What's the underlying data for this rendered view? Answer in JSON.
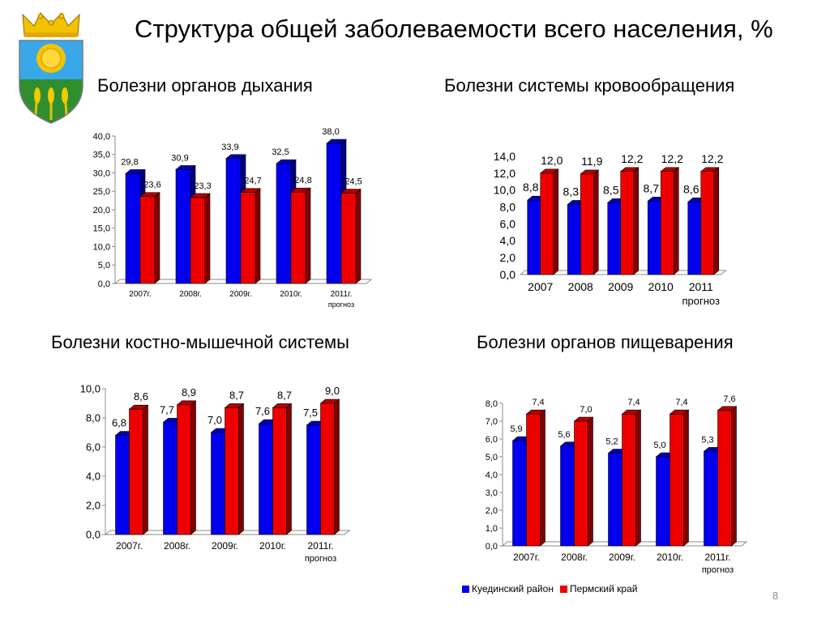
{
  "title": "Структура общей заболеваемости всего населения, %",
  "page_number": "8",
  "colors": {
    "region": "#0000ee",
    "krai": "#ee0000"
  },
  "legend": [
    {
      "label": "Куединский район",
      "color": "#0000ee"
    },
    {
      "label": "Пермский край",
      "color": "#ee0000"
    }
  ],
  "emblem": {
    "icon": "coat-of-arms-icon"
  },
  "chart_data": [
    {
      "type": "bar",
      "title": "Болезни органов дыхания",
      "categories": [
        "2007г.",
        "2008г.",
        "2009г.",
        "2010г.",
        "2011г.\nпрогноз"
      ],
      "series": [
        {
          "name": "Куединский район",
          "values": [
            29.8,
            30.9,
            33.9,
            32.5,
            38.0
          ],
          "labels": [
            "29,8",
            "30,9",
            "33,9",
            "32,5",
            "38,0"
          ]
        },
        {
          "name": "Пермский край",
          "values": [
            23.6,
            23.3,
            24.7,
            24.8,
            24.5
          ],
          "labels": [
            "23,6",
            "23,3",
            "24,7",
            "24,8",
            "24,5"
          ]
        }
      ],
      "ylim": [
        0,
        40
      ],
      "yticks": [
        "0,0",
        "5,0",
        "10,0",
        "15,0",
        "20,0",
        "25,0",
        "30,0",
        "35,0",
        "40,0"
      ],
      "grid": false
    },
    {
      "type": "bar",
      "title": "Болезни системы кровообращения",
      "categories": [
        "2007",
        "2008",
        "2009",
        "2010",
        "2011\nпрогноз"
      ],
      "series": [
        {
          "name": "Куединский район",
          "values": [
            8.8,
            8.3,
            8.5,
            8.7,
            8.6
          ],
          "labels": [
            "8,8",
            "8,3",
            "8,5",
            "8,7",
            "8,6"
          ]
        },
        {
          "name": "Пермский край",
          "values": [
            12.0,
            11.9,
            12.2,
            12.2,
            12.2
          ],
          "labels": [
            "12,0",
            "11,9",
            "12,2",
            "12,2",
            "12,2"
          ]
        }
      ],
      "ylim": [
        0,
        14
      ],
      "yticks": [
        "0,0",
        "2,0",
        "4,0",
        "6,0",
        "8,0",
        "10,0",
        "12,0",
        "14,0"
      ],
      "grid": false
    },
    {
      "type": "bar",
      "title": "Болезни костно-мышечной системы",
      "categories": [
        "2007г.",
        "2008г.",
        "2009г.",
        "2010г.",
        "2011г.\nпрогноз"
      ],
      "series": [
        {
          "name": "Куединский район",
          "values": [
            6.8,
            7.7,
            7.0,
            7.6,
            7.5
          ],
          "labels": [
            "6,8",
            "7,7",
            "7,0",
            "7,6",
            "7,5"
          ]
        },
        {
          "name": "Пермский край",
          "values": [
            8.6,
            8.9,
            8.7,
            8.7,
            9.0
          ],
          "labels": [
            "8,6",
            "8,9",
            "8,7",
            "8,7",
            "9,0"
          ]
        }
      ],
      "ylim": [
        0,
        10
      ],
      "yticks": [
        "0,0",
        "2,0",
        "4,0",
        "6,0",
        "8,0",
        "10,0"
      ],
      "grid": false
    },
    {
      "type": "bar",
      "title": "Болезни органов пищеварения",
      "categories": [
        "2007г.",
        "2008г.",
        "2009г.",
        "2010г.",
        "2011г.\nпрогноз"
      ],
      "series": [
        {
          "name": "Куединский район",
          "values": [
            5.9,
            5.6,
            5.2,
            5.0,
            5.3
          ],
          "labels": [
            "5,9",
            "5,6",
            "5,2",
            "5,0",
            "5,3"
          ]
        },
        {
          "name": "Пермский край",
          "values": [
            7.4,
            7.0,
            7.4,
            7.4,
            7.6
          ],
          "labels": [
            "7,4",
            "7,0",
            "7,4",
            "7,4",
            "7,6"
          ]
        }
      ],
      "ylim": [
        0,
        8
      ],
      "yticks": [
        "0,0",
        "1,0",
        "2,0",
        "3,0",
        "4,0",
        "5,0",
        "6,0",
        "7,0",
        "8,0"
      ],
      "grid": false,
      "legend_position": "bottom"
    }
  ]
}
